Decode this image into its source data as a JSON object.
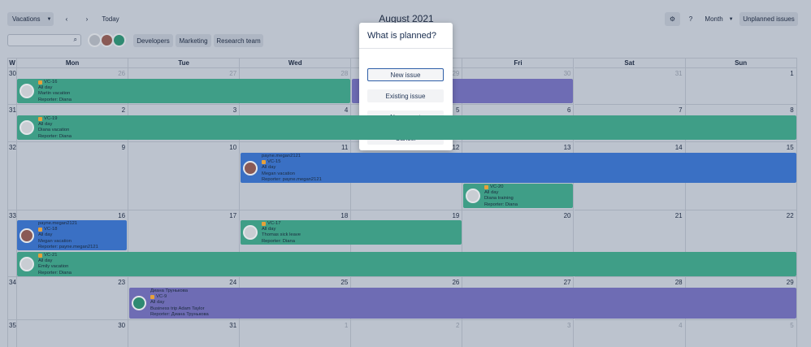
{
  "toolbar": {
    "view": "Vacations",
    "today": "Today",
    "title": "August 2021",
    "mode": "Month",
    "unplanned": "Unplanned issues"
  },
  "filters": [
    "Developers",
    "Marketing",
    "Research team"
  ],
  "calendar": {
    "week_label": "W",
    "weekdays": [
      "Mon",
      "Tue",
      "Wed",
      "Thu",
      "Fri",
      "Sat",
      "Sun"
    ],
    "weeks": [
      {
        "number": 30,
        "days": [
          26,
          27,
          28,
          29,
          30,
          31,
          1
        ]
      },
      {
        "number": 31,
        "days": [
          2,
          3,
          4,
          5,
          6,
          7,
          8
        ]
      },
      {
        "number": 32,
        "days": [
          9,
          10,
          11,
          12,
          13,
          14,
          15
        ]
      },
      {
        "number": 33,
        "days": [
          16,
          17,
          18,
          19,
          20,
          21,
          22
        ]
      },
      {
        "number": 34,
        "days": [
          23,
          24,
          25,
          26,
          27,
          28,
          29
        ]
      },
      {
        "number": 35,
        "days": [
          30,
          31,
          1,
          2,
          3,
          4,
          5
        ]
      }
    ]
  },
  "events": [
    {
      "key": "VC-16",
      "time": "All day",
      "summary": "Martin  vacation",
      "reporter": "Reporter: Diana"
    },
    {
      "key": "VC-19",
      "time": "All day",
      "summary": "Diana vacation",
      "reporter": "Reporter: Diana"
    },
    {
      "user": "payne.megan2121",
      "key": "VC-15",
      "time": "All day",
      "summary": "Megan  vacation",
      "reporter": "Reporter: payne.megan2121"
    },
    {
      "key": "VC-20",
      "time": "All day",
      "summary": "Diana training",
      "reporter": "Reporter: Diana"
    },
    {
      "user": "payne.megan2121",
      "key": "VC-18",
      "time": "All day",
      "summary": "Megan vacation",
      "reporter": "Reporter: payne.megan2121"
    },
    {
      "key": "VC-17",
      "time": "All day",
      "summary": "Thomas sick leave",
      "reporter": "Reporter: Diana"
    },
    {
      "key": "VC-21",
      "time": "All day",
      "summary": "Emily vacation",
      "reporter": "Reporter: Diana"
    },
    {
      "user": "Диана Трунькова",
      "key": "VC-9",
      "time": "All day",
      "summary": "Business trip Adam Taylor",
      "reporter": "Reporter: Диана Трунькова"
    }
  ],
  "modal": {
    "title": "What is planned?",
    "buttons": [
      "New issue",
      "Existing issue",
      "New event",
      "Cancel"
    ]
  }
}
